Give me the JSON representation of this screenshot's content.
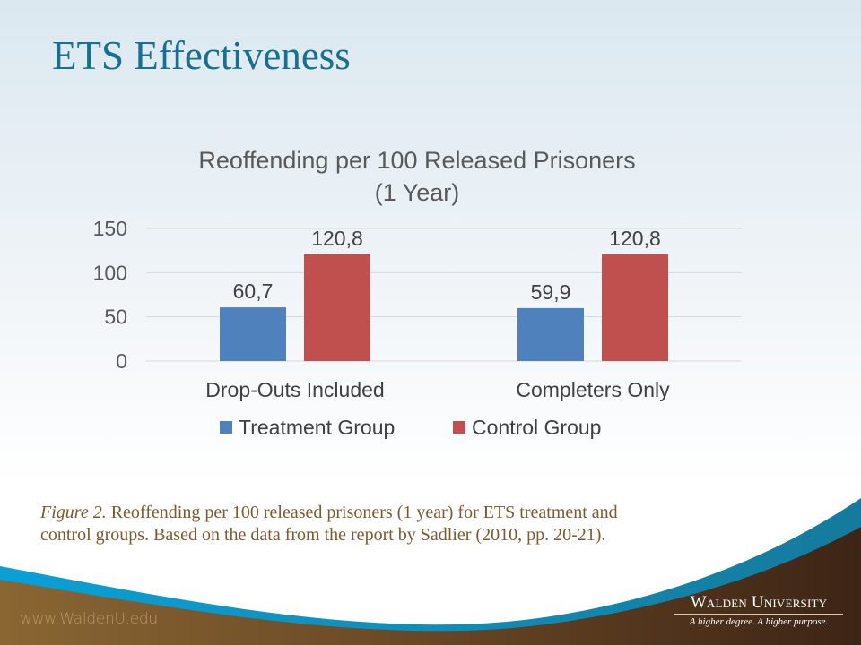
{
  "slide": {
    "title": "ETS Effectiveness"
  },
  "chart_data": {
    "type": "bar",
    "title_lines": [
      "Reoffending per 100 Released Prisoners",
      "(1 Year)"
    ],
    "categories": [
      "Drop-Outs Included",
      "Completers Only"
    ],
    "series": [
      {
        "name": "Treatment Group",
        "color": "#4F81BD",
        "values": [
          60.7,
          59.9
        ],
        "labels": [
          "60,7",
          "59,9"
        ]
      },
      {
        "name": "Control Group",
        "color": "#C0504D",
        "values": [
          120.8,
          120.8
        ],
        "labels": [
          "120,8",
          "120,8"
        ]
      }
    ],
    "yticks": [
      0,
      50,
      100,
      150
    ],
    "ylim": [
      0,
      150
    ],
    "xlabel": "",
    "ylabel": "",
    "grid": true,
    "legend_position": "bottom"
  },
  "caption": {
    "figure_label": "Figure 2.",
    "line1": " Reoffending per 100 released prisoners (1 year) for ETS treatment and",
    "line2": "control groups.  Based on the data from the report by Sadlier (2010, pp. 20-21)."
  },
  "footer": {
    "url": "www.WaldenU.edu",
    "logo_name": "Walden University",
    "logo_tagline": "A higher degree. A higher purpose."
  }
}
